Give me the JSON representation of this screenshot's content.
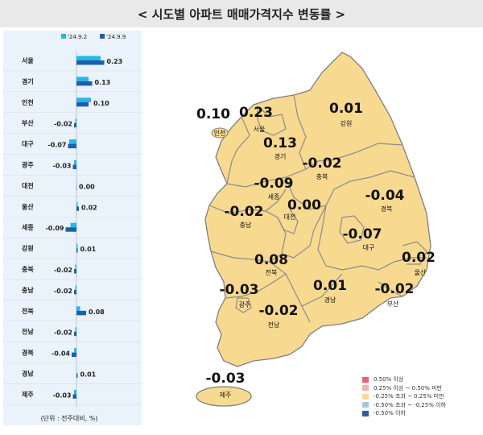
{
  "header": {
    "title": "< 시도별 아파트 매매가격지수 변동률 >"
  },
  "legend": {
    "items": [
      {
        "label": "0.50% 이상",
        "color": "#e8636b"
      },
      {
        "label": "0.25% 이상 ~ 0.50% 미만",
        "color": "#f4b3ab"
      },
      {
        "label": "-0.25% 초과 ~ 0.25% 미만",
        "color": "#f7d990"
      },
      {
        "label": "-0.50% 초과 ~ -0.25% 이하",
        "color": "#a9c3e6"
      },
      {
        "label": "-0.50% 이하",
        "color": "#2f5aa6"
      }
    ]
  },
  "map_values": [
    {
      "name": "인천",
      "value": "0.10"
    },
    {
      "name": "서울",
      "value": "0.23"
    },
    {
      "name": "강원",
      "value": "0.01"
    },
    {
      "name": "경기",
      "value": "0.13"
    },
    {
      "name": "충북",
      "value": "-0.02"
    },
    {
      "name": "세종",
      "value": "-0.09"
    },
    {
      "name": "대전",
      "value": "0.00"
    },
    {
      "name": "충남",
      "value": "-0.02"
    },
    {
      "name": "경북",
      "value": "-0.04"
    },
    {
      "name": "대구",
      "value": "-0.07"
    },
    {
      "name": "전북",
      "value": "0.08"
    },
    {
      "name": "울산",
      "value": "0.02"
    },
    {
      "name": "광주",
      "value": "-0.03"
    },
    {
      "name": "전남",
      "value": "-0.02"
    },
    {
      "name": "경남",
      "value": "0.01"
    },
    {
      "name": "부산",
      "value": "-0.02"
    },
    {
      "name": "제주",
      "value": "-0.03"
    }
  ],
  "chart_data": {
    "type": "bar",
    "orientation": "horizontal",
    "categories": [
      "서울",
      "경기",
      "인천",
      "부산",
      "대구",
      "광주",
      "대전",
      "울산",
      "세종",
      "강원",
      "충북",
      "충남",
      "전북",
      "전남",
      "경북",
      "경남",
      "제주"
    ],
    "series": [
      {
        "name": "'24.9.2",
        "color": "#29b6e8",
        "values": [
          0.2,
          0.1,
          0.12,
          -0.01,
          -0.06,
          -0.02,
          0.0,
          0.01,
          -0.05,
          0.01,
          -0.01,
          -0.01,
          0.03,
          -0.01,
          -0.02,
          0.0,
          -0.02
        ]
      },
      {
        "name": "'24.9.9",
        "color": "#1f5fa8",
        "values": [
          0.23,
          0.13,
          0.1,
          -0.02,
          -0.07,
          -0.03,
          0.0,
          0.02,
          -0.09,
          0.01,
          -0.02,
          -0.02,
          0.08,
          -0.02,
          -0.04,
          0.01,
          -0.03
        ]
      }
    ],
    "value_labels": [
      "0.23",
      "0.13",
      "0.10",
      "-0.02",
      "-0.07",
      "-0.03",
      "0.00",
      "0.02",
      "-0.09",
      "0.01",
      "-0.02",
      "-0.02",
      "0.08",
      "-0.02",
      "-0.04",
      "0.01",
      "-0.03"
    ],
    "note": "(단위 : 전주대비, %)",
    "title": "",
    "xlabel": "",
    "ylabel": ""
  }
}
